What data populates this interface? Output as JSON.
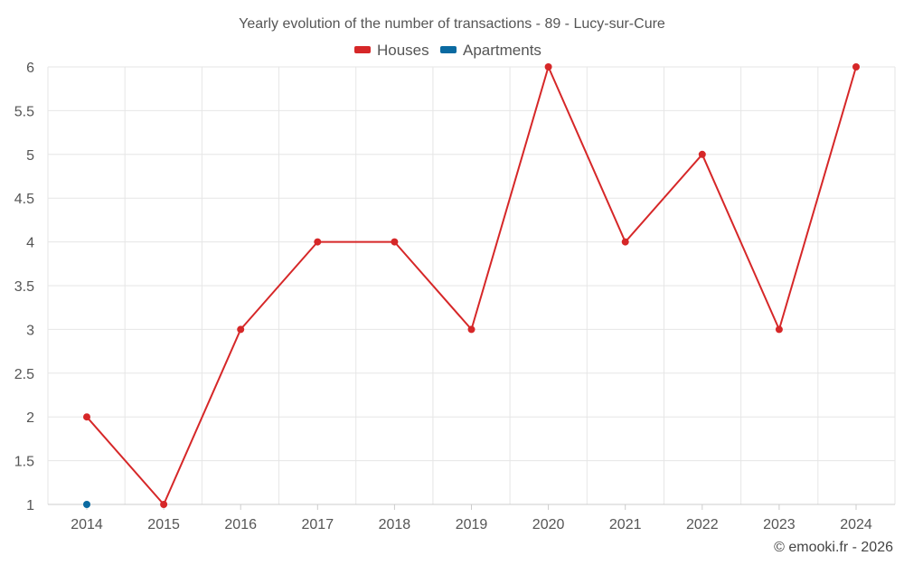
{
  "chart_data": {
    "type": "line",
    "title": "Yearly evolution of the number of transactions - 89 - Lucy-sur-Cure",
    "categories": [
      "2014",
      "2015",
      "2016",
      "2017",
      "2018",
      "2019",
      "2020",
      "2021",
      "2022",
      "2023",
      "2024"
    ],
    "y_ticks": [
      "1",
      "1.5",
      "2",
      "2.5",
      "3",
      "3.5",
      "4",
      "4.5",
      "5",
      "5.5",
      "6"
    ],
    "ylim": [
      1,
      6
    ],
    "grid": true,
    "legend_position": "top-center",
    "series": [
      {
        "name": "Houses",
        "color": "#d62728",
        "values": [
          2,
          1,
          3,
          4,
          4,
          3,
          6,
          4,
          5,
          3,
          6
        ]
      },
      {
        "name": "Apartments",
        "color": "#0a6aa1",
        "values": [
          1,
          null,
          null,
          null,
          null,
          null,
          null,
          null,
          null,
          null,
          null
        ]
      }
    ],
    "credit": "© emooki.fr - 2026"
  }
}
